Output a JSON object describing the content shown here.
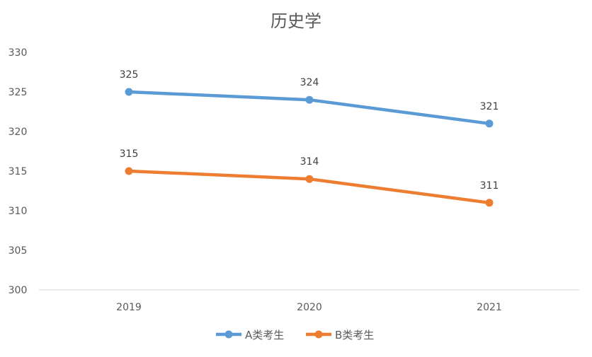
{
  "chart_data": {
    "type": "line",
    "title": "历史学",
    "xlabel": "",
    "ylabel": "",
    "categories": [
      "2019",
      "2020",
      "2021"
    ],
    "ylim": [
      300,
      330
    ],
    "yticks": [
      "300",
      "305",
      "310",
      "315",
      "320",
      "325",
      "330"
    ],
    "grid": false,
    "legend_position": "bottom",
    "series": [
      {
        "name": "A类考生",
        "values": [
          325,
          324,
          321
        ],
        "color": "#5B9BD5"
      },
      {
        "name": "B类考生",
        "values": [
          315,
          314,
          311
        ],
        "color": "#ED7D31"
      }
    ],
    "data_labels": true
  }
}
